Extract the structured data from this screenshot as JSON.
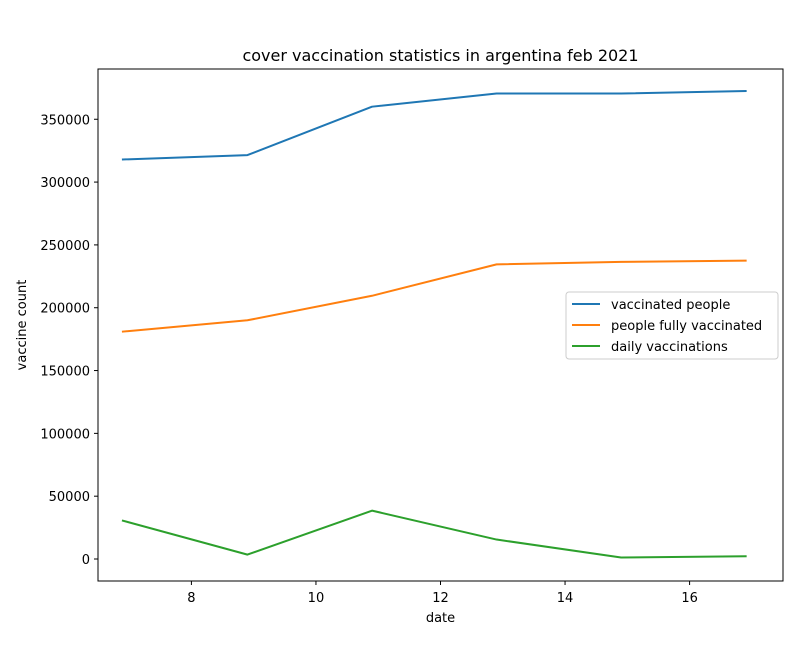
{
  "chart_data": {
    "type": "line",
    "title": "cover vaccination statistics in argentina feb 2021",
    "xlabel": "date",
    "ylabel": "vaccine count",
    "xlim": [
      6.5,
      17.5
    ],
    "ylim": [
      -17500,
      390000
    ],
    "xticks": [
      8,
      10,
      12,
      14,
      16
    ],
    "yticks": [
      0,
      50000,
      100000,
      150000,
      200000,
      250000,
      300000,
      350000
    ],
    "x": [
      6.9,
      8.9,
      10.9,
      12.9,
      14.9,
      16.9
    ],
    "series": [
      {
        "name": "vaccinated people",
        "color": "#1f77b4",
        "values": [
          318000,
          321500,
          360000,
          370500,
          370500,
          372500
        ]
      },
      {
        "name": "people fully vaccinated",
        "color": "#ff7f0e",
        "values": [
          181000,
          190000,
          209500,
          234500,
          236500,
          237500
        ]
      },
      {
        "name": "daily vaccinations",
        "color": "#2ca02c",
        "values": [
          30500,
          3500,
          38500,
          15500,
          1200,
          2200
        ]
      }
    ],
    "legend_position": "center-right",
    "grid": false
  }
}
